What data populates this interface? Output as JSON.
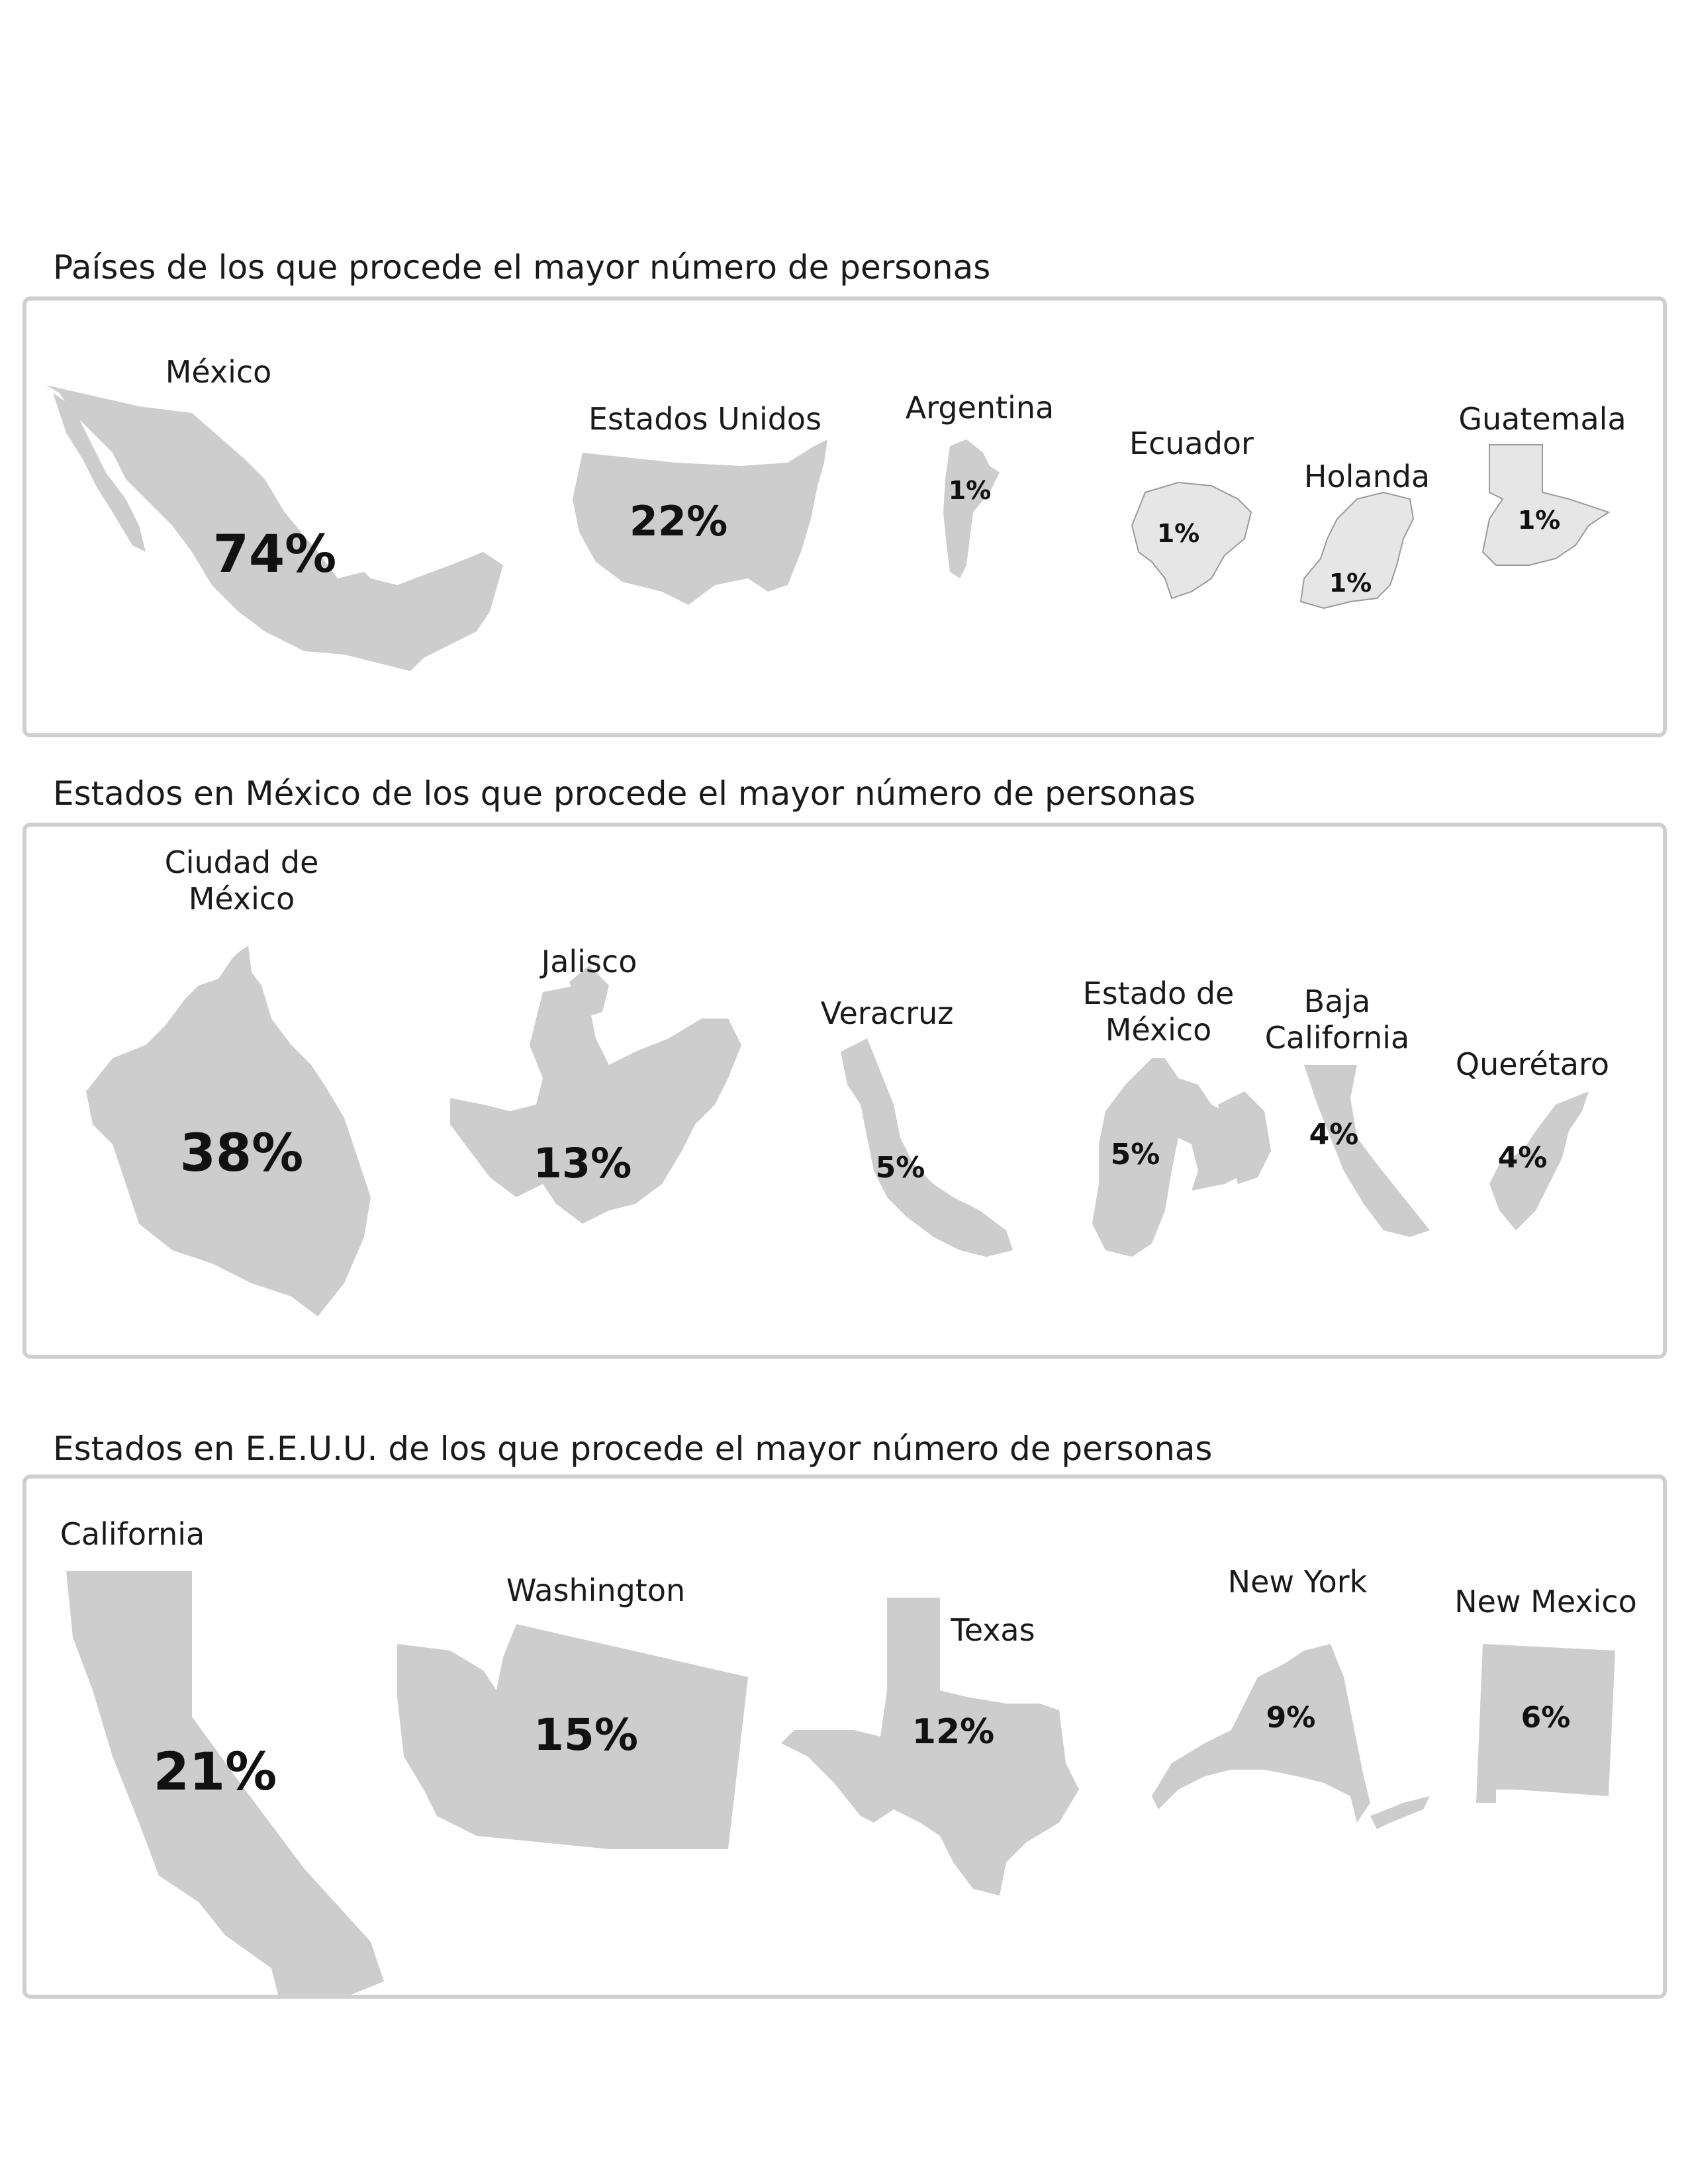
{
  "sections": [
    {
      "title": "Países de los que procede el mayor número de personas",
      "items": [
        {
          "label": "México",
          "value": "74%"
        },
        {
          "label": "Estados Unidos",
          "value": "22%"
        },
        {
          "label": "Argentina",
          "value": "1%"
        },
        {
          "label": "Ecuador",
          "value": "1%"
        },
        {
          "label": "Holanda",
          "value": "1%"
        },
        {
          "label": "Guatemala",
          "value": "1%"
        }
      ]
    },
    {
      "title": "Estados en México de los que procede el mayor número de personas",
      "items": [
        {
          "label": "Ciudad de México",
          "value": "38%"
        },
        {
          "label": "Jalisco",
          "value": "13%"
        },
        {
          "label": "Veracruz",
          "value": "5%"
        },
        {
          "label": "Estado de México",
          "value": "5%"
        },
        {
          "label": "Baja California",
          "value": "4%"
        },
        {
          "label": "Querétaro",
          "value": "4%"
        }
      ]
    },
    {
      "title": "Estados en E.E.U.U. de los que procede el mayor número de personas",
      "items": [
        {
          "label": "California",
          "value": "21%"
        },
        {
          "label": "Washington",
          "value": "15%"
        },
        {
          "label": "Texas",
          "value": "12%"
        },
        {
          "label": "New York",
          "value": "9%"
        },
        {
          "label": "New Mexico",
          "value": "6%"
        }
      ]
    }
  ],
  "chart_data": [
    {
      "type": "bar",
      "title": "Países de los que procede el mayor número de personas",
      "categories": [
        "México",
        "Estados Unidos",
        "Argentina",
        "Ecuador",
        "Holanda",
        "Guatemala"
      ],
      "values": [
        74,
        22,
        1,
        1,
        1,
        1
      ]
    },
    {
      "type": "bar",
      "title": "Estados en México de los que procede el mayor número de personas",
      "categories": [
        "Ciudad de México",
        "Jalisco",
        "Veracruz",
        "Estado de México",
        "Baja California",
        "Querétaro"
      ],
      "values": [
        38,
        13,
        5,
        5,
        4,
        4
      ]
    },
    {
      "type": "bar",
      "title": "Estados en E.E.U.U. de los que procede el mayor número de personas",
      "categories": [
        "California",
        "Washington",
        "Texas",
        "New York",
        "New Mexico"
      ],
      "values": [
        21,
        15,
        12,
        9,
        6
      ]
    }
  ],
  "colors": {
    "shape_main": "#cdcdcd",
    "shape_light": "#e6e6e6",
    "panel_border": "#cfcfcf"
  }
}
